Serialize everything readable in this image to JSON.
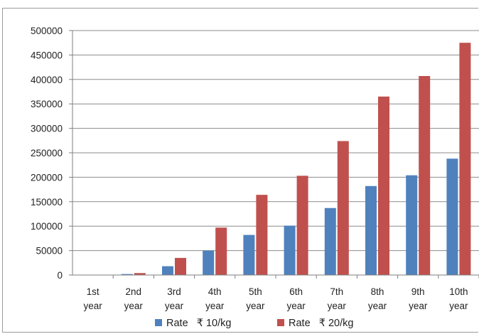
{
  "colors": {
    "series1": "#4f81bd",
    "series2": "#c0504d",
    "grid": "#8c8c8c",
    "axis": "#7f7f7f"
  },
  "chart_data": {
    "type": "bar",
    "title": "",
    "xlabel": "",
    "ylabel": "",
    "ylim": [
      0,
      500000
    ],
    "yticks": [
      0,
      50000,
      100000,
      150000,
      200000,
      250000,
      300000,
      350000,
      400000,
      450000,
      500000
    ],
    "grid": true,
    "legend_position": "bottom",
    "categories": [
      [
        "1st",
        "year"
      ],
      [
        "2nd",
        "year"
      ],
      [
        "3rd",
        "year"
      ],
      [
        "4th",
        "year"
      ],
      [
        "5th",
        "year"
      ],
      [
        "6th",
        "year"
      ],
      [
        "7th",
        "year"
      ],
      [
        "8th",
        "year"
      ],
      [
        "9th",
        "year"
      ],
      [
        "10th",
        "year"
      ]
    ],
    "series": [
      {
        "name": "Rate   ₹ 10/kg",
        "color": "#4f81bd",
        "values": [
          0,
          2000,
          18000,
          50000,
          82000,
          101000,
          137000,
          182000,
          204000,
          238000
        ]
      },
      {
        "name": "Rate   ₹ 20/kg",
        "color": "#c0504d",
        "values": [
          0,
          4000,
          35000,
          97000,
          164000,
          203000,
          274000,
          365000,
          407000,
          475000
        ]
      }
    ]
  }
}
